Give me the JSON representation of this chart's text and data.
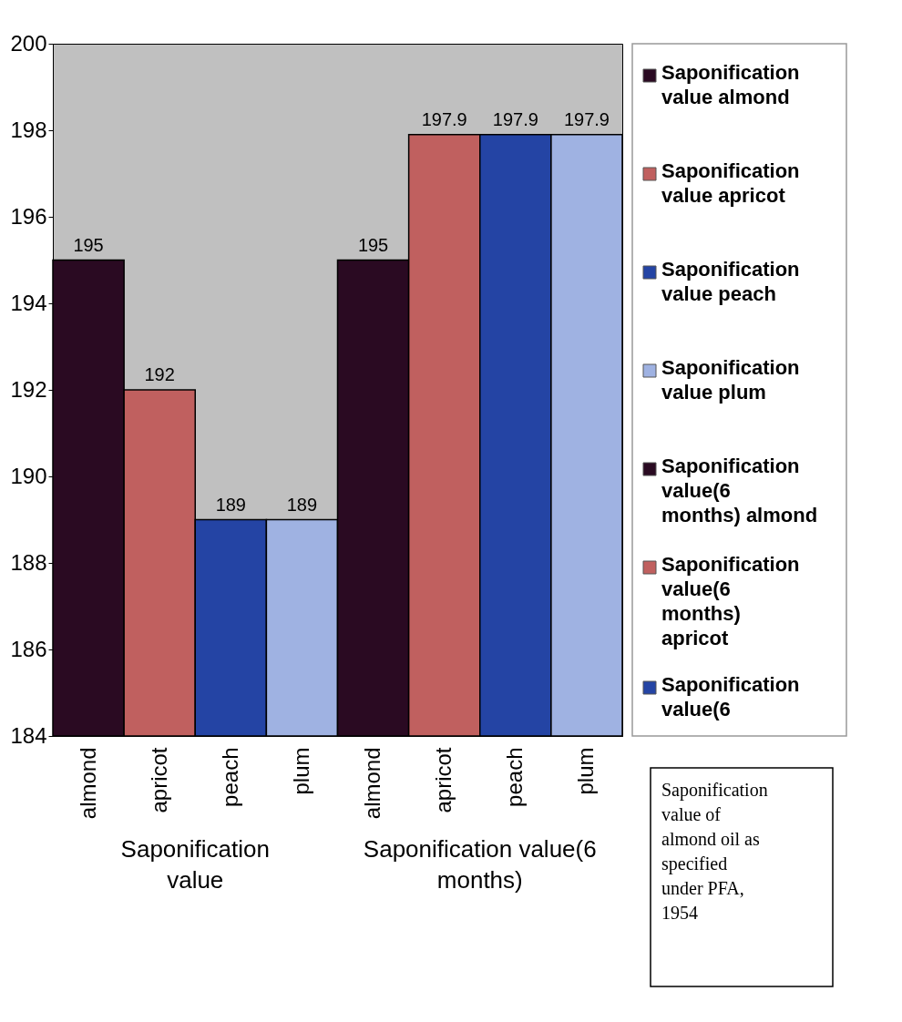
{
  "chart_data": {
    "type": "bar",
    "categories": [
      "almond",
      "apricot",
      "peach",
      "plum",
      "almond",
      "apricot",
      "peach",
      "plum"
    ],
    "series": [
      {
        "name": "Saponification value almond",
        "color": "#2a0a22",
        "values": [
          195,
          null,
          null,
          null,
          null,
          null,
          null,
          null
        ]
      },
      {
        "name": "Saponification value apricot",
        "color": "#c0605f",
        "values": [
          null,
          192,
          null,
          null,
          null,
          null,
          null,
          null
        ]
      },
      {
        "name": "Saponification value peach",
        "color": "#2444a4",
        "values": [
          null,
          null,
          189,
          null,
          null,
          null,
          null,
          null
        ]
      },
      {
        "name": "Saponification value plum",
        "color": "#9fb2e2",
        "values": [
          null,
          null,
          null,
          189,
          null,
          null,
          null,
          null
        ]
      },
      {
        "name": "Saponification value(6 months) almond",
        "color": "#2a0a22",
        "values": [
          null,
          null,
          null,
          null,
          195,
          null,
          null,
          null
        ]
      },
      {
        "name": "Saponification value(6 months) apricot",
        "color": "#c0605f",
        "values": [
          null,
          null,
          null,
          null,
          null,
          197.9,
          null,
          null
        ]
      },
      {
        "name": "Saponification value(6",
        "color": "#2444a4",
        "values": [
          null,
          null,
          null,
          null,
          null,
          null,
          197.9,
          null
        ]
      },
      {
        "color": "#9fb2e2",
        "values": [
          null,
          null,
          null,
          null,
          null,
          null,
          null,
          197.9
        ]
      }
    ],
    "ylim": [
      184,
      200
    ],
    "yticks": [
      184,
      186,
      188,
      190,
      192,
      194,
      196,
      198,
      200
    ],
    "data_labels": true,
    "legend": "right",
    "annotations": [
      "Saponification value",
      "Saponification value(6 months)",
      "Saponification value of almond oil as specified under PFA, 1954"
    ]
  }
}
